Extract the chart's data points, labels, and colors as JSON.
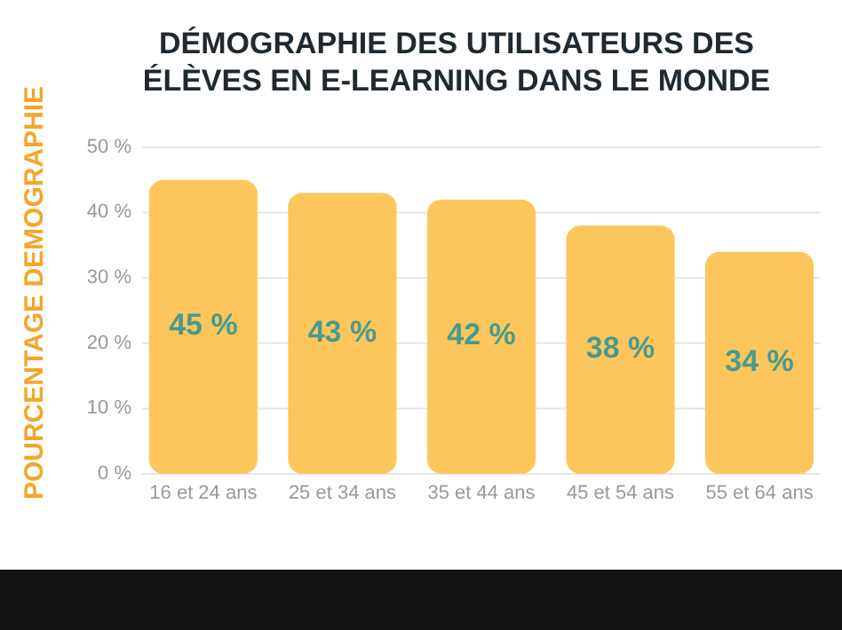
{
  "chart_data": {
    "type": "bar",
    "title": "DÉMOGRAPHIE DES UTILISATEURS DES ÉLÈVES EN E-LEARNING DANS LE MONDE",
    "ylabel": "POURCENTAGE DEMOGRAPHIE",
    "categories": [
      "16 et 24 ans",
      "25 et 34 ans",
      "35 et 44 ans",
      "45 et 54 ans",
      "55 et 64 ans"
    ],
    "values": [
      45,
      43,
      42,
      38,
      34
    ],
    "color": "#fdc65c",
    "value_labels": [
      "45 %",
      "43 %",
      "42 %",
      "38 %",
      "34 %"
    ],
    "ylim": [
      0,
      50
    ],
    "yticks": [
      {
        "value": 0,
        "label": "0 %"
      },
      {
        "value": 10,
        "label": "10 %"
      },
      {
        "value": 20,
        "label": "20 %"
      },
      {
        "value": 30,
        "label": "30 %"
      },
      {
        "value": 40,
        "label": "40 %"
      },
      {
        "value": 50,
        "label": "50 %"
      }
    ],
    "grid": "y"
  }
}
